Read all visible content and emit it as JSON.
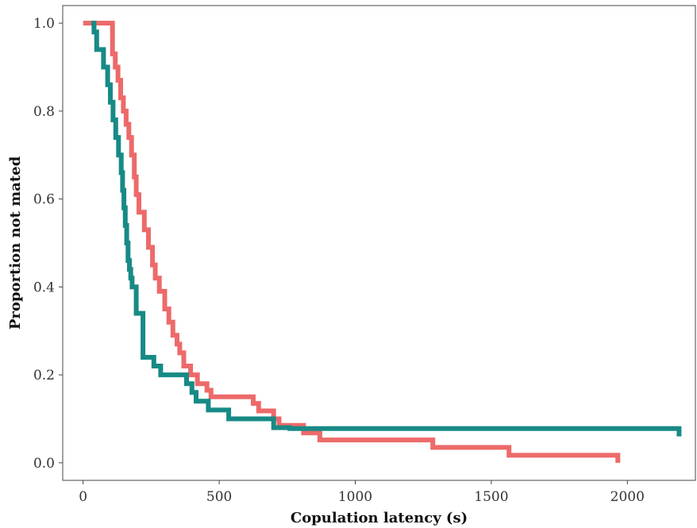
{
  "chart_data": {
    "type": "line",
    "title": "",
    "xlabel": "Copulation latency (s)",
    "ylabel": "Proportion not mated",
    "xlim": [
      -75,
      2250
    ],
    "ylim": [
      -0.04,
      1.04
    ],
    "x_ticks": [
      0,
      500,
      1000,
      1500,
      2000
    ],
    "y_ticks": [
      0.0,
      0.2,
      0.4,
      0.6,
      0.8,
      1.0
    ],
    "x_tick_labels": [
      "0",
      "500",
      "1000",
      "1500",
      "2000"
    ],
    "y_tick_labels": [
      "0.0",
      "0.2",
      "0.4",
      "0.6",
      "0.8",
      "1.0"
    ],
    "grid": false,
    "legend": "none",
    "step": true,
    "series": [
      {
        "color": "#ED6A6A",
        "x": [
          0,
          95,
          108,
          118,
          128,
          138,
          148,
          158,
          168,
          178,
          188,
          195,
          205,
          225,
          240,
          255,
          265,
          280,
          300,
          315,
          330,
          345,
          355,
          370,
          395,
          420,
          455,
          470,
          525,
          625,
          645,
          700,
          720,
          810,
          870,
          1000,
          1285,
          1565,
          1965
        ],
        "y": [
          1.0,
          1.0,
          0.93,
          0.9,
          0.87,
          0.83,
          0.8,
          0.77,
          0.74,
          0.7,
          0.65,
          0.61,
          0.57,
          0.53,
          0.49,
          0.45,
          0.42,
          0.39,
          0.35,
          0.32,
          0.29,
          0.27,
          0.25,
          0.22,
          0.2,
          0.18,
          0.165,
          0.15,
          0.15,
          0.135,
          0.118,
          0.1,
          0.085,
          0.068,
          0.052,
          0.052,
          0.035,
          0.017,
          0.0
        ]
      },
      {
        "color": "#178A86",
        "x": [
          30,
          40,
          50,
          75,
          90,
          100,
          110,
          120,
          130,
          140,
          145,
          150,
          155,
          160,
          165,
          170,
          175,
          180,
          195,
          220,
          260,
          285,
          380,
          400,
          415,
          460,
          535,
          590,
          700,
          760,
          2190
        ],
        "y": [
          1.0,
          0.98,
          0.94,
          0.9,
          0.86,
          0.82,
          0.78,
          0.74,
          0.7,
          0.66,
          0.62,
          0.58,
          0.54,
          0.5,
          0.46,
          0.44,
          0.42,
          0.4,
          0.34,
          0.24,
          0.22,
          0.2,
          0.18,
          0.16,
          0.14,
          0.12,
          0.1,
          0.1,
          0.08,
          0.078,
          0.06
        ]
      }
    ]
  }
}
